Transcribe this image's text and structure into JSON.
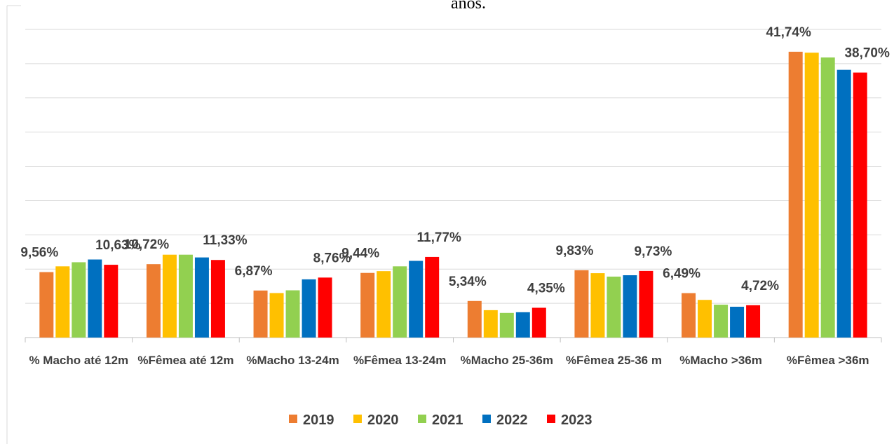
{
  "chart_data": {
    "type": "bar",
    "title": "anos.",
    "categories": [
      "% Macho até 12m",
      "%Fêmea até 12m",
      "%Macho 13-24m",
      "%Fêmea 13-24m",
      "%Macho 25-36m",
      "%Fêmea 25-36 m",
      "%Macho >36m",
      "%Fêmea >36m"
    ],
    "series": [
      {
        "name": "2019",
        "color": "#ED7D31",
        "values": [
          9.56,
          10.72,
          6.87,
          9.44,
          5.34,
          9.83,
          6.49,
          41.74
        ],
        "value_labels": [
          "9,56%",
          "10,72%",
          "6,87%",
          "9,44%",
          "5,34%",
          "9,83%",
          "6,49%",
          "41,74%"
        ]
      },
      {
        "name": "2020",
        "color": "#FFC000",
        "values": [
          10.4,
          12.1,
          6.5,
          9.7,
          4.0,
          9.4,
          5.5,
          41.6
        ]
      },
      {
        "name": "2021",
        "color": "#92D050",
        "values": [
          11.0,
          12.1,
          6.9,
          10.4,
          3.6,
          8.9,
          4.8,
          40.9
        ]
      },
      {
        "name": "2022",
        "color": "#0070C0",
        "values": [
          11.4,
          11.7,
          8.5,
          11.2,
          3.7,
          9.1,
          4.5,
          39.1
        ]
      },
      {
        "name": "2023",
        "color": "#FF0000",
        "values": [
          10.63,
          11.33,
          8.76,
          11.77,
          4.35,
          9.73,
          4.72,
          38.7
        ],
        "value_labels": [
          "10,63%",
          "11,33%",
          "8,76%",
          "11,77%",
          "4,35%",
          "9,73%",
          "4,72%",
          "38,70%"
        ]
      }
    ],
    "ylim": [
      0,
      45
    ],
    "yticks": [
      0,
      5,
      10,
      15,
      20,
      25,
      30,
      35,
      40,
      45
    ],
    "grid": true,
    "legend": "bottom"
  }
}
